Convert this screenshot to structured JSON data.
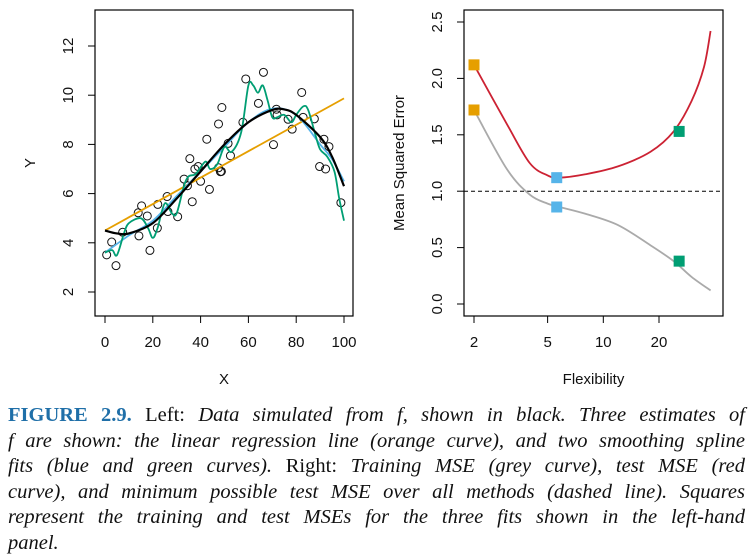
{
  "chart_data": [
    {
      "type": "scatter",
      "panel": "left",
      "xlabel": "X",
      "ylabel": "Y",
      "xlim": [
        0,
        100
      ],
      "ylim": [
        1,
        13.5
      ],
      "xticks": [
        "0",
        "20",
        "40",
        "60",
        "80",
        "100"
      ],
      "yticks": [
        "2",
        "4",
        "6",
        "8",
        "10",
        "12"
      ],
      "grid": false,
      "points": [
        [
          0.7,
          3.51
        ],
        [
          2.8,
          4.03
        ],
        [
          4.6,
          3.07
        ],
        [
          7.4,
          4.43
        ],
        [
          13.9,
          5.22
        ],
        [
          14.2,
          4.28
        ],
        [
          15.3,
          5.5
        ],
        [
          17.7,
          5.09
        ],
        [
          18.8,
          3.69
        ],
        [
          21.9,
          4.6
        ],
        [
          22.1,
          5.56
        ],
        [
          26,
          5.88
        ],
        [
          26.3,
          5.27
        ],
        [
          30.4,
          5.06
        ],
        [
          33.1,
          6.59
        ],
        [
          34.5,
          6.32
        ],
        [
          35.5,
          7.42
        ],
        [
          36.5,
          5.67
        ],
        [
          37.6,
          7.0
        ],
        [
          39,
          7.1
        ],
        [
          40,
          6.5
        ],
        [
          42.6,
          8.21
        ],
        [
          43.7,
          6.17
        ],
        [
          47.5,
          8.83
        ],
        [
          47.5,
          7.05
        ],
        [
          48.3,
          6.89
        ],
        [
          48.7,
          6.9
        ],
        [
          48.9,
          9.5
        ],
        [
          51.5,
          8.04
        ],
        [
          52.5,
          7.54
        ],
        [
          57.7,
          8.9
        ],
        [
          58.9,
          10.66
        ],
        [
          64.2,
          9.67
        ],
        [
          66.3,
          10.93
        ],
        [
          70.5,
          7.99
        ],
        [
          71.7,
          9.43
        ],
        [
          72,
          9.2
        ],
        [
          76.6,
          9.02
        ],
        [
          78.3,
          8.62
        ],
        [
          82.3,
          10.11
        ],
        [
          82.9,
          9.1
        ],
        [
          87.6,
          9.04
        ],
        [
          89.8,
          7.1
        ],
        [
          91.6,
          8.21
        ],
        [
          92.3,
          7.0
        ],
        [
          93.7,
          7.91
        ],
        [
          98.7,
          5.63
        ]
      ],
      "series": [
        {
          "color": "#000000",
          "x": [
            0,
            5,
            10,
            20,
            30,
            40,
            50,
            60,
            70,
            75,
            80,
            90,
            95,
            100
          ],
          "y": [
            4.5,
            4.38,
            4.38,
            4.8,
            5.8,
            6.9,
            8.0,
            8.9,
            9.4,
            9.42,
            9.2,
            8.3,
            7.5,
            6.3
          ]
        },
        {
          "color": "#e69f00",
          "x": [
            0,
            100
          ],
          "y": [
            4.5,
            9.87
          ]
        },
        {
          "color": "#56b4e9",
          "x": [
            0,
            10,
            20,
            30,
            40,
            50,
            60,
            70,
            80,
            90,
            95,
            100
          ],
          "y": [
            3.6,
            4.3,
            4.9,
            5.9,
            6.9,
            7.9,
            8.9,
            9.45,
            9.2,
            8.0,
            7.4,
            6.5
          ]
        },
        {
          "color": "#009e73",
          "x": [
            0,
            3,
            5,
            8,
            10,
            15,
            18,
            20,
            22,
            25,
            28,
            30,
            33,
            35,
            38,
            42,
            44,
            47,
            50,
            53,
            57,
            60,
            62,
            64,
            66,
            68,
            70,
            72,
            75,
            78,
            80,
            83,
            85,
            88,
            90,
            93,
            96,
            98,
            100
          ],
          "y": [
            3.6,
            3.7,
            3.5,
            4.4,
            4.8,
            5.0,
            4.6,
            4.2,
            4.6,
            5.6,
            5.2,
            5.2,
            6.3,
            6.7,
            6.8,
            7.3,
            7.0,
            7.2,
            7.9,
            7.7,
            8.5,
            10.4,
            10.4,
            10.1,
            10.4,
            9.8,
            9.1,
            9.1,
            9.2,
            8.9,
            9.2,
            9.55,
            9.4,
            8.4,
            7.8,
            7.5,
            6.9,
            5.8,
            4.9
          ]
        }
      ]
    },
    {
      "type": "line",
      "panel": "right",
      "xlabel": "Flexibility",
      "ylabel": "Mean Squared Error",
      "xscale": "log",
      "xlim": [
        2,
        39
      ],
      "ylim": [
        -0.05,
        2.6
      ],
      "xticks": [
        "2",
        "5",
        "10",
        "20"
      ],
      "yticks": [
        "0.0",
        "0.5",
        "1.0",
        "1.5",
        "2.0",
        "2.5"
      ],
      "grid": false,
      "series": [
        {
          "color": "#cc2233",
          "x": [
            2,
            3,
            4,
            5,
            5.8,
            8,
            12,
            18,
            24,
            30,
            35,
            38
          ],
          "y": [
            2.12,
            1.6,
            1.25,
            1.14,
            1.12,
            1.15,
            1.22,
            1.35,
            1.53,
            1.8,
            2.1,
            2.42
          ]
        },
        {
          "color": "#aaaaaa",
          "x": [
            2,
            3,
            4,
            5,
            5.8,
            8,
            12,
            18,
            24,
            30,
            38
          ],
          "y": [
            1.72,
            1.2,
            0.97,
            0.89,
            0.86,
            0.8,
            0.7,
            0.52,
            0.38,
            0.24,
            0.12
          ]
        }
      ],
      "hline": {
        "y": 1.0,
        "style": "dashed"
      },
      "squares": [
        {
          "x": 2,
          "y": 2.12,
          "color": "#e69f00"
        },
        {
          "x": 2,
          "y": 1.72,
          "color": "#e69f00"
        },
        {
          "x": 5.6,
          "y": 1.12,
          "color": "#56b4e9"
        },
        {
          "x": 5.6,
          "y": 0.86,
          "color": "#56b4e9"
        },
        {
          "x": 25.7,
          "y": 1.53,
          "color": "#009e73"
        },
        {
          "x": 25.7,
          "y": 0.38,
          "color": "#009e73"
        }
      ]
    }
  ],
  "caption": {
    "lines": [
      [
        {
          "s": "b",
          "t": "FIGURE 2.9."
        },
        {
          "s": "r",
          "t": " Left: "
        },
        {
          "s": "i",
          "t": "Data simulated from f, shown in black. Three estimates of"
        }
      ],
      [
        {
          "s": "i",
          "t": "f are shown: the linear regression line (orange curve), and two smoothing spline"
        }
      ],
      [
        {
          "s": "i",
          "t": "fits (blue and green curves). "
        },
        {
          "s": "r",
          "t": "Right: "
        },
        {
          "s": "i",
          "t": "Training MSE (grey curve), test MSE (red"
        }
      ],
      [
        {
          "s": "i",
          "t": "curve), and minimum possible test MSE over all methods (dashed line). Squares"
        }
      ],
      [
        {
          "s": "i",
          "t": "represent the training and test MSEs for the three fits shown in the left-hand"
        }
      ],
      [
        {
          "s": "i",
          "t": "panel."
        }
      ]
    ]
  }
}
